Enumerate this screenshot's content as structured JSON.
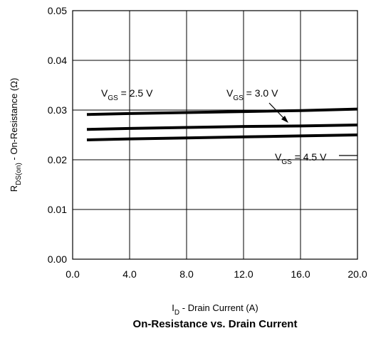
{
  "chart_data": {
    "type": "line",
    "title": "On-Resistance vs. Drain Current",
    "xlabel": {
      "main": "I",
      "sub": "D",
      "rest": " - Drain Current (A)"
    },
    "ylabel": {
      "main": "R",
      "sub": "DS(on)",
      "rest": " - On-Resistance (Ω)"
    },
    "xlim": [
      0,
      20
    ],
    "ylim": [
      0,
      0.05
    ],
    "x_ticks": [
      "0.0",
      "4.0",
      "8.0",
      "12.0",
      "16.0",
      "20.0"
    ],
    "y_ticks": [
      "0.00",
      "0.01",
      "0.02",
      "0.03",
      "0.04",
      "0.05"
    ],
    "grid": true,
    "series": [
      {
        "name": "VGS = 2.5 V",
        "x": [
          1.0,
          4.0,
          8.0,
          12.0,
          16.0,
          20.0
        ],
        "y": [
          0.0291,
          0.0293,
          0.0295,
          0.0297,
          0.0299,
          0.0302
        ]
      },
      {
        "name": "VGS = 3.0 V",
        "x": [
          1.0,
          4.0,
          8.0,
          12.0,
          16.0,
          20.0
        ],
        "y": [
          0.0261,
          0.0263,
          0.0265,
          0.0267,
          0.0268,
          0.027
        ]
      },
      {
        "name": "VGS = 4.5 V",
        "x": [
          1.0,
          4.0,
          8.0,
          12.0,
          16.0,
          20.0
        ],
        "y": [
          0.024,
          0.0242,
          0.0244,
          0.0246,
          0.0248,
          0.025
        ]
      }
    ],
    "annotations": [
      {
        "id": "vgs25",
        "main": "V",
        "sub": "GS",
        "rest": " = 2.5 V"
      },
      {
        "id": "vgs30",
        "main": "V",
        "sub": "GS",
        "rest": " = 3.0 V"
      },
      {
        "id": "vgs45",
        "main": "V",
        "sub": "GS",
        "rest": " = 4.5 V"
      }
    ],
    "colors": {
      "line": "#000000",
      "grid": "#000000",
      "background": "#ffffff"
    }
  }
}
